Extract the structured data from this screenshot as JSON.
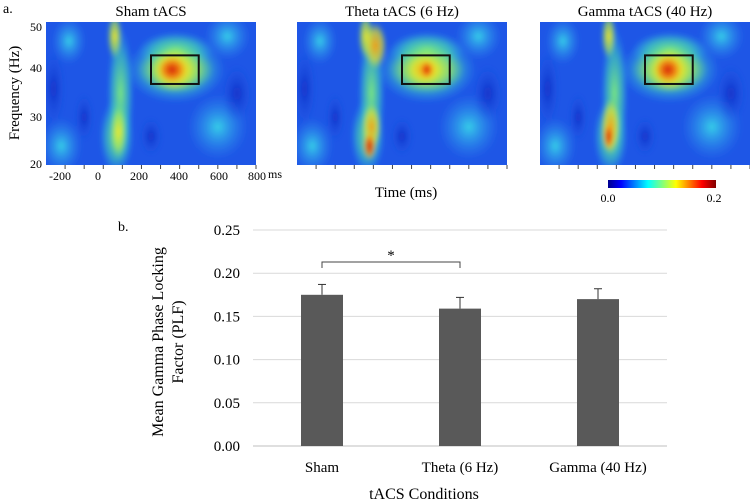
{
  "chart_data": [
    {
      "type": "heatmap",
      "panel_label": "a.",
      "ylabel": "Frequency (Hz)",
      "xlabel": "Time (ms)",
      "y_ticks": [
        "20",
        "30",
        "40",
        "50"
      ],
      "x_ticks": [
        "-200",
        "0",
        "200",
        "400",
        "600",
        "800"
      ],
      "x_unit": "ms",
      "xlim": [
        -300,
        800
      ],
      "ylim": [
        20,
        50
      ],
      "roi": {
        "time_ms": [
          250,
          500
        ],
        "freq_hz": [
          37,
          43
        ]
      },
      "colorbar": {
        "min_label": "0.0",
        "max_label": "0.2",
        "range": [
          0.0,
          0.2
        ]
      },
      "panels": [
        {
          "title": "Sham tACS",
          "roi_strength": 1.0
        },
        {
          "title": "Theta tACS (6 Hz)",
          "roi_strength": 0.65
        },
        {
          "title": "Gamma tACS (40 Hz)",
          "roi_strength": 1.0
        }
      ]
    },
    {
      "type": "bar",
      "panel_label": "b.",
      "categories": [
        "Sham",
        "Theta (6 Hz)",
        "Gamma (40 Hz)"
      ],
      "values": [
        0.175,
        0.159,
        0.17
      ],
      "errors": [
        0.012,
        0.013,
        0.012
      ],
      "ylim": [
        0,
        0.25
      ],
      "y_ticks": [
        "0.00",
        "0.05",
        "0.10",
        "0.15",
        "0.20",
        "0.25"
      ],
      "ylabel": "Mean Gamma Phase Locking Factor (PLF)",
      "ylabel_lines": [
        "Mean Gamma Phase Locking",
        "Factor (PLF)"
      ],
      "xlabel": "tACS Conditions",
      "bar_color": "#595959",
      "significance": {
        "from": 0,
        "to": 1,
        "label": "*"
      }
    }
  ]
}
